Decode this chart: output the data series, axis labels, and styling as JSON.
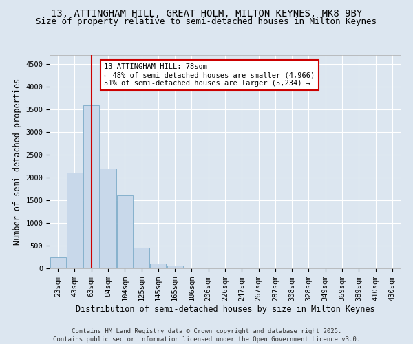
{
  "title_line1": "13, ATTINGHAM HILL, GREAT HOLM, MILTON KEYNES, MK8 9BY",
  "title_line2": "Size of property relative to semi-detached houses in Milton Keynes",
  "xlabel": "Distribution of semi-detached houses by size in Milton Keynes",
  "ylabel": "Number of semi-detached properties",
  "categories": [
    "23sqm",
    "43sqm",
    "63sqm",
    "84sqm",
    "104sqm",
    "125sqm",
    "145sqm",
    "165sqm",
    "186sqm",
    "206sqm",
    "226sqm",
    "247sqm",
    "267sqm",
    "287sqm",
    "308sqm",
    "328sqm",
    "349sqm",
    "369sqm",
    "389sqm",
    "410sqm",
    "430sqm"
  ],
  "values": [
    250,
    2100,
    3600,
    2200,
    1600,
    450,
    100,
    55,
    0,
    0,
    0,
    0,
    0,
    0,
    0,
    0,
    0,
    0,
    0,
    0,
    0
  ],
  "bar_color": "#c8d8ea",
  "bar_edge_color": "#7aaac8",
  "vline_color": "#cc0000",
  "vline_pos": 2.0,
  "annotation_line1": "13 ATTINGHAM HILL: 78sqm",
  "annotation_line2": "← 48% of semi-detached houses are smaller (4,966)",
  "annotation_line3": "51% of semi-detached houses are larger (5,234) →",
  "annotation_box_edge": "#cc0000",
  "ylim": [
    0,
    4700
  ],
  "yticks": [
    0,
    500,
    1000,
    1500,
    2000,
    2500,
    3000,
    3500,
    4000,
    4500
  ],
  "background_color": "#dce6f0",
  "plot_bg_color": "#dce6f0",
  "footer_line1": "Contains HM Land Registry data © Crown copyright and database right 2025.",
  "footer_line2": "Contains public sector information licensed under the Open Government Licence v3.0.",
  "title_fontsize": 10,
  "subtitle_fontsize": 9,
  "axis_label_fontsize": 8.5,
  "tick_fontsize": 7.5,
  "footer_fontsize": 6.5,
  "annotation_fontsize": 7.5
}
